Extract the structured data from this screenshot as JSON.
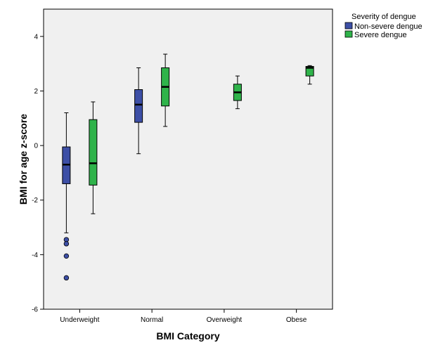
{
  "chart_data": {
    "type": "boxplot",
    "xlabel": "BMI Category",
    "ylabel": "BMI for age z-score",
    "ylim": [
      -6,
      5
    ],
    "yticks": [
      "4",
      "2",
      "0",
      "-2",
      "-4",
      "-6"
    ],
    "categories": [
      "Underweight",
      "Normal",
      "Overweight",
      "Obese"
    ],
    "legend": {
      "title": "Severity of dengue",
      "placement": "top-right outside"
    },
    "background": "#f0f0f0",
    "series": [
      {
        "name": "Non-severe dengue",
        "color": "#3d4fa6",
        "boxes": [
          {
            "category": "Underweight",
            "min": -3.2,
            "q1": -1.4,
            "median": -0.7,
            "q3": -0.05,
            "max": 1.2,
            "outliers": [
              -3.45,
              -3.6,
              -4.05,
              -4.85
            ]
          },
          {
            "category": "Normal",
            "min": -0.3,
            "q1": 0.85,
            "median": 1.5,
            "q3": 2.05,
            "max": 2.85,
            "outliers": []
          }
        ]
      },
      {
        "name": "Severe dengue",
        "color": "#2fb34a",
        "boxes": [
          {
            "category": "Underweight",
            "min": -2.5,
            "q1": -1.45,
            "median": -0.65,
            "q3": 0.95,
            "max": 1.6,
            "outliers": []
          },
          {
            "category": "Normal",
            "min": 0.7,
            "q1": 1.45,
            "median": 2.15,
            "q3": 2.85,
            "max": 3.35,
            "outliers": []
          },
          {
            "category": "Overweight",
            "min": 1.35,
            "q1": 1.65,
            "median": 1.95,
            "q3": 2.25,
            "max": 2.55,
            "outliers": []
          },
          {
            "category": "Obese",
            "min": 2.25,
            "q1": 2.55,
            "median": 2.85,
            "q3": 2.9,
            "max": 2.93,
            "outliers": []
          }
        ]
      }
    ]
  }
}
